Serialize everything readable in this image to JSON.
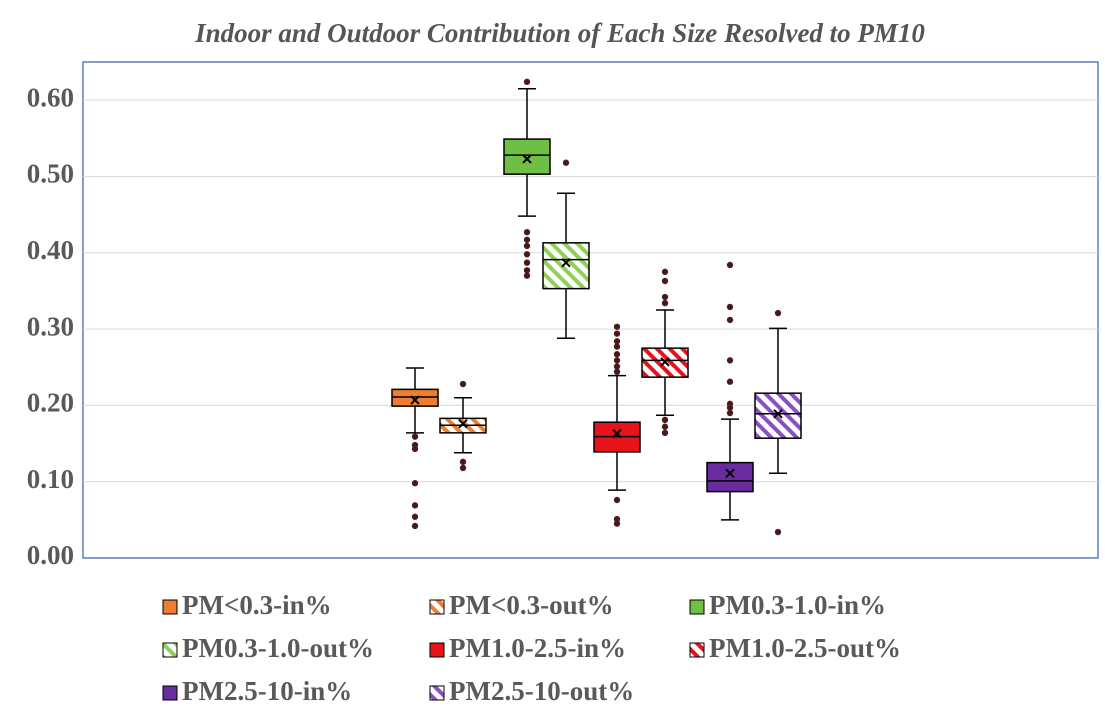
{
  "chart_data": {
    "type": "box",
    "title": "Indoor and Outdoor Contribution of Each Size Resolved to PM10",
    "ylim": [
      0,
      0.65
    ],
    "yticks": [
      {
        "value": 0,
        "label": "0.00"
      },
      {
        "value": 0.1,
        "label": "0.10"
      },
      {
        "value": 0.2,
        "label": "0.20"
      },
      {
        "value": 0.3,
        "label": "0.30"
      },
      {
        "value": 0.4,
        "label": "0.40"
      },
      {
        "value": 0.5,
        "label": "0.50"
      },
      {
        "value": 0.6,
        "label": "0.60"
      }
    ],
    "grid": true,
    "series": [
      {
        "name": "PM<0.3-in%",
        "color": "#ed7d31",
        "hatch": false,
        "whisker_low": 0.164,
        "q1": 0.199,
        "median": 0.211,
        "q3": 0.221,
        "whisker_high": 0.249,
        "mean": 0.207,
        "outliers": [
          0.159,
          0.148,
          0.143,
          0.098,
          0.069,
          0.054,
          0.042
        ]
      },
      {
        "name": "PM<0.3-out%",
        "color": "#ed7d31",
        "hatch": true,
        "whisker_low": 0.138,
        "q1": 0.164,
        "median": 0.174,
        "q3": 0.183,
        "whisker_high": 0.21,
        "mean": 0.176,
        "outliers": [
          0.228,
          0.126,
          0.118
        ]
      },
      {
        "name": "PM0.3-1.0-in%",
        "color": "#6fbf44",
        "hatch": false,
        "whisker_low": 0.448,
        "q1": 0.503,
        "median": 0.528,
        "q3": 0.549,
        "whisker_high": 0.615,
        "mean": 0.523,
        "outliers": [
          0.624,
          0.427,
          0.417,
          0.409,
          0.398,
          0.387,
          0.377,
          0.37
        ]
      },
      {
        "name": "PM0.3-1.0-out%",
        "color": "#8fd05a",
        "hatch": true,
        "whisker_low": 0.288,
        "q1": 0.353,
        "median": 0.391,
        "q3": 0.413,
        "whisker_high": 0.478,
        "mean": 0.387,
        "outliers": [
          0.518
        ]
      },
      {
        "name": "PM1.0-2.5-in%",
        "color": "#e8121b",
        "hatch": false,
        "whisker_low": 0.089,
        "q1": 0.139,
        "median": 0.159,
        "q3": 0.178,
        "whisker_high": 0.239,
        "mean": 0.163,
        "outliers": [
          0.303,
          0.294,
          0.284,
          0.277,
          0.267,
          0.259,
          0.251,
          0.244,
          0.076,
          0.051,
          0.045
        ]
      },
      {
        "name": "PM1.0-2.5-out%",
        "color": "#e8121b",
        "hatch": true,
        "whisker_low": 0.187,
        "q1": 0.237,
        "median": 0.259,
        "q3": 0.275,
        "whisker_high": 0.325,
        "mean": 0.257,
        "outliers": [
          0.375,
          0.363,
          0.342,
          0.334,
          0.181,
          0.172,
          0.164
        ]
      },
      {
        "name": "PM2.5-10-in%",
        "color": "#6a2aa0",
        "hatch": false,
        "whisker_low": 0.05,
        "q1": 0.087,
        "median": 0.101,
        "q3": 0.125,
        "whisker_high": 0.182,
        "mean": 0.111,
        "outliers": [
          0.384,
          0.329,
          0.312,
          0.259,
          0.231,
          0.202,
          0.197,
          0.19
        ]
      },
      {
        "name": "PM2.5-10-out%",
        "color": "#8a4fc0",
        "hatch": true,
        "whisker_low": 0.111,
        "q1": 0.157,
        "median": 0.189,
        "q3": 0.216,
        "whisker_high": 0.301,
        "mean": 0.189,
        "outliers": [
          0.321,
          0.034
        ]
      }
    ]
  }
}
